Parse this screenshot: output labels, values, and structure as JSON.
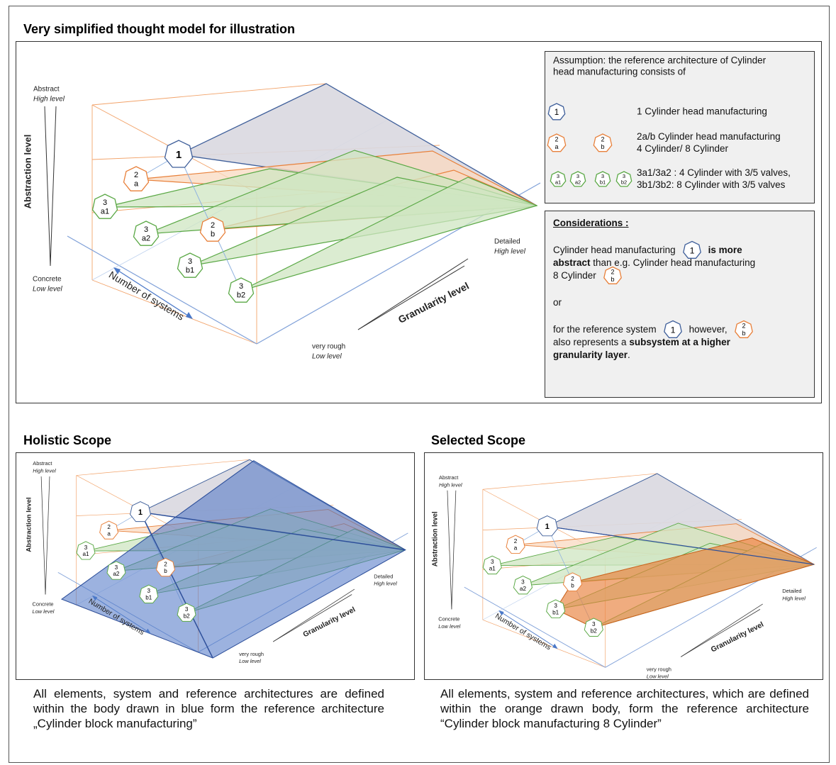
{
  "title": "Very simplified thought model for illustration",
  "model": {
    "abstract": "Abstract",
    "abstract_level": "High level",
    "concrete": "Concrete",
    "concrete_level": "Low level",
    "abstraction_axis": "Abstraction level",
    "systems_axis": "Number of systems",
    "granularity_axis": "Granularity level",
    "rough": "very rough",
    "rough_level": "Low level",
    "detailed": "Detailed",
    "detailed_level": "High level",
    "nodes": [
      {
        "num": "1"
      },
      {
        "num": "2",
        "sub": "a"
      },
      {
        "num": "3",
        "sub": "a1"
      },
      {
        "num": "3",
        "sub": "a2"
      },
      {
        "num": "2",
        "sub": "b"
      },
      {
        "num": "3",
        "sub": "b1"
      },
      {
        "num": "3",
        "sub": "b2"
      }
    ]
  },
  "assumption": {
    "intro": [
      "Assumption: the reference architecture of Cylinder",
      "head manufacturing consists of"
    ],
    "rows": [
      {
        "icons": [
          {
            "num": "1"
          }
        ],
        "lines": [
          "1 Cylinder head manufacturing"
        ]
      },
      {
        "icons": [
          {
            "num": "2",
            "sub": "a"
          },
          {
            "num": "2",
            "sub": "b"
          }
        ],
        "lines": [
          "2a/b Cylinder head manufacturing",
          "4 Cylinder/ 8 Cylinder"
        ]
      },
      {
        "icons": [
          {
            "num": "3",
            "sub": "a1"
          },
          {
            "num": "3",
            "sub": "a2"
          },
          {
            "num": "3",
            "sub": "b1"
          },
          {
            "num": "3",
            "sub": "b2"
          }
        ],
        "lines": [
          "3a1/3a2 : 4 Cylinder with 3/5 valves,",
          "3b1/3b2: 8 Cylinder with 3/5 valves"
        ]
      }
    ]
  },
  "considerations": {
    "heading": "Considerations :",
    "paragraphs": [
      [
        [
          {
            "text": "Cylinder head manufacturing"
          },
          {
            "icon": {
              "num": "1"
            }
          },
          {
            "text": "is more",
            "bold": true
          }
        ],
        [
          {
            "text": "abstract",
            "bold": true
          },
          {
            "text": " than e.g. Cylinder head manufacturing"
          }
        ],
        [
          {
            "text": "8 Cylinder"
          },
          {
            "icon": {
              "num": "2",
              "sub": "b"
            }
          }
        ]
      ],
      [
        [
          {
            "text": "or"
          }
        ]
      ],
      [
        [
          {
            "text": "for the reference system"
          },
          {
            "icon": {
              "num": "1"
            }
          },
          {
            "text": "however,"
          },
          {
            "icon": {
              "num": "2",
              "sub": "b"
            }
          }
        ],
        [
          {
            "text": "also represents a "
          },
          {
            "text": "subsystem at a higher",
            "bold": true
          }
        ],
        [
          {
            "text": "granularity layer",
            "bold": true
          },
          {
            "text": "."
          }
        ]
      ]
    ]
  },
  "holistic": {
    "title": "Holistic Scope",
    "caption": "All elements, system and reference architectures are defined within the body drawn in blue form the reference architecture „Cylinder block manufacturing”"
  },
  "selected": {
    "title": "Selected Scope",
    "caption": "All elements, system and reference architectures, which are defined within the orange drawn body, form the reference architecture  “Cylinder block manufacturing 8 Cylinder”"
  }
}
